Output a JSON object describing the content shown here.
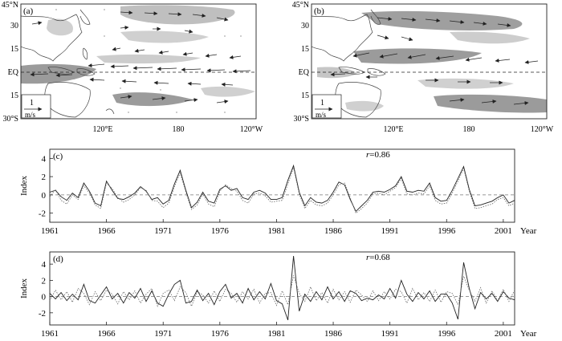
{
  "maps": [
    {
      "panel_label": "(a)",
      "lat_labels": [
        "45°N",
        "30",
        "15",
        "EQ",
        "15",
        "30°S"
      ],
      "lon_labels": [
        "120°E",
        "180",
        "120°W"
      ],
      "scale_arrow": {
        "value": "1",
        "unit": "m/s"
      }
    },
    {
      "panel_label": "(b)",
      "lat_labels": [
        "45°N",
        "30",
        "15",
        "EQ",
        "15",
        "30°S"
      ],
      "lon_labels": [
        "120°E",
        "180",
        "120°W"
      ],
      "scale_arrow": {
        "value": "1",
        "unit": "m/s"
      }
    }
  ],
  "chart_data": [
    {
      "type": "line",
      "panel_label": "(c)",
      "ylabel": "Index",
      "xlabel": "Year",
      "annotation": {
        "italic": "r",
        "text": "=0.86"
      },
      "xlim": [
        1961,
        2002
      ],
      "ylim": [
        -3,
        5
      ],
      "yticks": [
        4,
        2,
        0,
        -2
      ],
      "xticks": [
        "1961",
        "1966",
        "1971",
        "1976",
        "1981",
        "1986",
        "1991",
        "1996",
        "2001"
      ],
      "zero_line": "dashed",
      "series": [
        {
          "style": "solid",
          "x": [
            1961.0,
            1961.5,
            1962.0,
            1962.5,
            1963.0,
            1963.5,
            1964.0,
            1964.5,
            1965.0,
            1965.5,
            1966.0,
            1966.5,
            1967.0,
            1967.5,
            1968.0,
            1968.5,
            1969.0,
            1969.5,
            1970.0,
            1970.5,
            1971.0,
            1971.5,
            1972.0,
            1972.5,
            1973.0,
            1973.5,
            1974.0,
            1974.5,
            1975.0,
            1975.5,
            1976.0,
            1976.5,
            1977.0,
            1977.5,
            1978.0,
            1978.5,
            1979.0,
            1979.5,
            1980.0,
            1980.5,
            1981.0,
            1981.5,
            1982.0,
            1982.5,
            1983.0,
            1983.5,
            1984.0,
            1984.5,
            1985.0,
            1985.5,
            1986.0,
            1986.5,
            1987.0,
            1987.5,
            1988.0,
            1988.5,
            1989.0,
            1989.5,
            1990.0,
            1990.5,
            1991.0,
            1991.5,
            1992.0,
            1992.5,
            1993.0,
            1993.5,
            1994.0,
            1994.5,
            1995.0,
            1995.5,
            1996.0,
            1996.5,
            1997.0,
            1997.5,
            1998.0,
            1998.5,
            1999.0,
            1999.5,
            2000.0,
            2000.5,
            2001.0,
            2001.5,
            2002.0
          ],
          "values": [
            0.3,
            0.5,
            -0.2,
            -0.6,
            0.2,
            -0.3,
            1.3,
            0.4,
            -0.9,
            -1.2,
            1.5,
            0.5,
            -0.4,
            -0.5,
            -0.2,
            0.2,
            0.9,
            0.4,
            -0.5,
            -0.3,
            -1.0,
            -0.6,
            1.2,
            2.7,
            0.5,
            -1.4,
            -0.8,
            0.3,
            -0.7,
            -0.9,
            0.6,
            1.0,
            0.5,
            0.7,
            -0.3,
            -0.5,
            0.3,
            0.5,
            0.2,
            -0.5,
            -0.5,
            -0.3,
            1.6,
            3.2,
            0.3,
            -1.2,
            -0.3,
            -0.8,
            -0.9,
            -0.6,
            0.3,
            1.4,
            1.1,
            -0.5,
            -1.8,
            -1.2,
            -0.6,
            0.3,
            0.4,
            0.3,
            0.6,
            1.0,
            2.0,
            0.4,
            0.3,
            0.5,
            0.4,
            1.3,
            -0.3,
            -0.7,
            -0.6,
            0.5,
            1.8,
            3.1,
            0.6,
            -1.2,
            -1.1,
            -0.9,
            -0.7,
            -0.3,
            0.0,
            -0.9,
            -0.6
          ]
        },
        {
          "style": "dotted",
          "x": [
            1961.0,
            1961.5,
            1962.0,
            1962.5,
            1963.0,
            1963.5,
            1964.0,
            1964.5,
            1965.0,
            1965.5,
            1966.0,
            1966.5,
            1967.0,
            1967.5,
            1968.0,
            1968.5,
            1969.0,
            1969.5,
            1970.0,
            1970.5,
            1971.0,
            1971.5,
            1972.0,
            1972.5,
            1973.0,
            1973.5,
            1974.0,
            1974.5,
            1975.0,
            1975.5,
            1976.0,
            1976.5,
            1977.0,
            1977.5,
            1978.0,
            1978.5,
            1979.0,
            1979.5,
            1980.0,
            1980.5,
            1981.0,
            1981.5,
            1982.0,
            1982.5,
            1983.0,
            1983.5,
            1984.0,
            1984.5,
            1985.0,
            1985.5,
            1986.0,
            1986.5,
            1987.0,
            1987.5,
            1988.0,
            1988.5,
            1989.0,
            1989.5,
            1990.0,
            1990.5,
            1991.0,
            1991.5,
            1992.0,
            1992.5,
            1993.0,
            1993.5,
            1994.0,
            1994.5,
            1995.0,
            1995.5,
            1996.0,
            1996.5,
            1997.0,
            1997.5,
            1998.0,
            1998.5,
            1999.0,
            1999.5,
            2000.0,
            2000.5,
            2001.0,
            2001.5,
            2002.0
          ],
          "values": [
            -0.2,
            0.6,
            -0.6,
            -1.0,
            0.0,
            -0.5,
            1.0,
            0.2,
            -1.1,
            -1.5,
            1.3,
            0.7,
            -0.3,
            -0.8,
            -0.5,
            0.0,
            0.8,
            0.5,
            -0.6,
            -0.7,
            -1.4,
            -0.9,
            0.9,
            2.4,
            0.3,
            -1.6,
            -1.1,
            0.1,
            -1.0,
            -1.3,
            0.4,
            1.1,
            0.7,
            0.4,
            -0.6,
            -0.9,
            0.1,
            0.2,
            -0.1,
            -0.8,
            -0.7,
            -0.6,
            1.2,
            3.0,
            0.1,
            -1.5,
            -0.6,
            -1.1,
            -1.2,
            -0.9,
            0.0,
            1.1,
            1.3,
            -0.3,
            -2.0,
            -1.5,
            -0.9,
            0.1,
            0.2,
            0.0,
            0.4,
            0.8,
            1.8,
            0.1,
            0.0,
            0.2,
            0.1,
            1.0,
            -0.6,
            -1.0,
            -0.9,
            0.2,
            1.5,
            2.9,
            0.4,
            -1.5,
            -1.4,
            -1.2,
            -1.0,
            -0.5,
            -0.3,
            -1.2,
            -0.9
          ]
        }
      ]
    },
    {
      "type": "line",
      "panel_label": "(d)",
      "ylabel": "Index",
      "xlabel": "Year",
      "annotation": {
        "italic": "r",
        "text": "=0.68"
      },
      "xlim": [
        1961,
        2002
      ],
      "ylim": [
        -3.5,
        5.5
      ],
      "yticks": [
        4,
        2,
        0,
        -2
      ],
      "xticks": [
        "1961",
        "1966",
        "1971",
        "1976",
        "1981",
        "1986",
        "1991",
        "1996",
        "2001"
      ],
      "zero_line": "dashed",
      "series": [
        {
          "style": "solid",
          "x": [
            1961.0,
            1961.5,
            1962.0,
            1962.5,
            1963.0,
            1963.5,
            1964.0,
            1964.5,
            1965.0,
            1965.5,
            1966.0,
            1966.5,
            1967.0,
            1967.5,
            1968.0,
            1968.5,
            1969.0,
            1969.5,
            1970.0,
            1970.5,
            1971.0,
            1971.5,
            1972.0,
            1972.5,
            1973.0,
            1973.5,
            1974.0,
            1974.5,
            1975.0,
            1975.5,
            1976.0,
            1976.5,
            1977.0,
            1977.5,
            1978.0,
            1978.5,
            1979.0,
            1979.5,
            1980.0,
            1980.5,
            1981.0,
            1981.5,
            1982.0,
            1982.5,
            1983.0,
            1983.5,
            1984.0,
            1984.5,
            1985.0,
            1985.5,
            1986.0,
            1986.5,
            1987.0,
            1987.5,
            1988.0,
            1988.5,
            1989.0,
            1989.5,
            1990.0,
            1990.5,
            1991.0,
            1991.5,
            1992.0,
            1992.5,
            1993.0,
            1993.5,
            1994.0,
            1994.5,
            1995.0,
            1995.5,
            1996.0,
            1996.5,
            1997.0,
            1997.5,
            1998.0,
            1998.5,
            1999.0,
            1999.5,
            2000.0,
            2000.5,
            2001.0,
            2001.5,
            2002.0
          ],
          "values": [
            0.4,
            -0.3,
            0.5,
            -0.5,
            0.3,
            -0.4,
            1.5,
            -0.5,
            -0.8,
            0.2,
            1.2,
            -0.3,
            0.4,
            -0.8,
            0.5,
            -0.2,
            1.0,
            -0.6,
            0.7,
            -0.8,
            -1.2,
            0.3,
            1.5,
            2.0,
            -0.8,
            -0.6,
            0.8,
            -0.5,
            0.4,
            -1.0,
            0.6,
            1.5,
            -0.2,
            0.4,
            -0.8,
            1.0,
            -0.4,
            0.6,
            -0.3,
            1.6,
            -0.5,
            -0.9,
            -2.9,
            5.0,
            -1.8,
            0.3,
            -0.6,
            0.6,
            -0.4,
            1.2,
            -0.3,
            0.6,
            -0.6,
            0.7,
            0.4,
            -0.5,
            -0.2,
            -0.4,
            0.2,
            -0.3,
            1.0,
            -0.2,
            2.0,
            0.3,
            -0.6,
            0.5,
            -0.3,
            0.7,
            -0.6,
            0.3,
            0.3,
            -0.8,
            -2.8,
            4.2,
            1.0,
            -1.5,
            0.5,
            -0.3,
            0.4,
            -0.6,
            0.6,
            -0.2,
            -0.4
          ]
        },
        {
          "style": "dotted",
          "x": [
            1961.0,
            1961.5,
            1962.0,
            1962.5,
            1963.0,
            1963.5,
            1964.0,
            1964.5,
            1965.0,
            1965.5,
            1966.0,
            1966.5,
            1967.0,
            1967.5,
            1968.0,
            1968.5,
            1969.0,
            1969.5,
            1970.0,
            1970.5,
            1971.0,
            1971.5,
            1972.0,
            1972.5,
            1973.0,
            1973.5,
            1974.0,
            1974.5,
            1975.0,
            1975.5,
            1976.0,
            1976.5,
            1977.0,
            1977.5,
            1978.0,
            1978.5,
            1979.0,
            1979.5,
            1980.0,
            1980.5,
            1981.0,
            1981.5,
            1982.0,
            1982.5,
            1983.0,
            1983.5,
            1984.0,
            1984.5,
            1985.0,
            1985.5,
            1986.0,
            1986.5,
            1987.0,
            1987.5,
            1988.0,
            1988.5,
            1989.0,
            1989.5,
            1990.0,
            1990.5,
            1991.0,
            1991.5,
            1992.0,
            1992.5,
            1993.0,
            1993.5,
            1994.0,
            1994.5,
            1995.0,
            1995.5,
            1996.0,
            1996.5,
            1997.0,
            1997.5,
            1998.0,
            1998.5,
            1999.0,
            1999.5,
            2000.0,
            2000.5,
            2001.0,
            2001.5,
            2002.0
          ],
          "values": [
            -0.5,
            0.8,
            -0.4,
            0.6,
            -0.7,
            1.0,
            0.4,
            -1.0,
            0.6,
            -0.5,
            0.8,
            0.3,
            -0.9,
            0.6,
            -0.4,
            0.7,
            -0.8,
            0.3,
            1.0,
            -1.2,
            0.4,
            0.8,
            -0.5,
            1.2,
            0.5,
            -1.2,
            0.6,
            0.2,
            -0.8,
            0.7,
            -0.6,
            0.9,
            0.4,
            -0.7,
            0.6,
            -0.3,
            0.9,
            -0.8,
            0.4,
            0.5,
            -1.1,
            0.7,
            -1.0,
            2.6,
            0.4,
            -0.6,
            1.2,
            -0.5,
            0.5,
            -0.8,
            0.9,
            -0.4,
            0.6,
            -0.7,
            0.8,
            0.2,
            -0.6,
            0.7,
            -0.5,
            0.6,
            -0.3,
            0.9,
            0.6,
            -0.8,
            1.0,
            -0.4,
            0.5,
            -0.6,
            0.8,
            -0.7,
            0.6,
            0.4,
            -1.0,
            2.5,
            0.8,
            -0.6,
            1.1,
            -0.8,
            0.7,
            -0.5,
            0.9,
            -0.6,
            0.8
          ]
        }
      ]
    }
  ]
}
